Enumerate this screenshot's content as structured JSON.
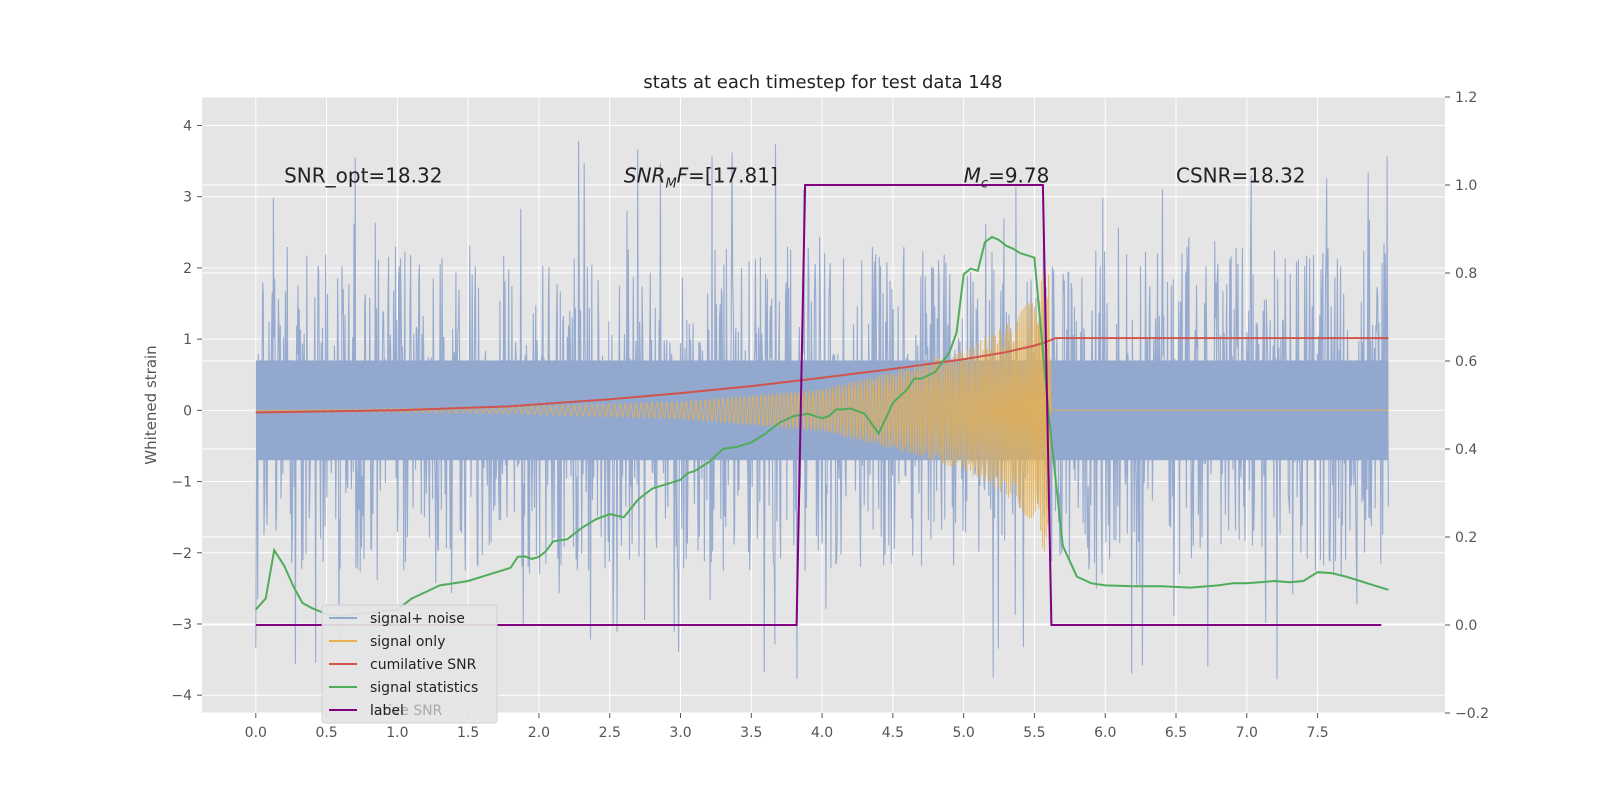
{
  "chart_data": {
    "type": "line",
    "title": "stats at each timestep for test data 148",
    "ylabel": "Whitened strain",
    "xlabel": "",
    "xlim": [
      -0.38,
      8.4
    ],
    "ylim": [
      -4.25,
      4.4
    ],
    "y2lim": [
      -0.2,
      1.2
    ],
    "x_ticks": [
      "0.0",
      "0.5",
      "1.0",
      "1.5",
      "2.0",
      "2.5",
      "3.0",
      "3.5",
      "4.0",
      "4.5",
      "5.0",
      "5.5",
      "6.0",
      "6.5",
      "7.0",
      "7.5"
    ],
    "x_tick_values": [
      0,
      0.5,
      1,
      1.5,
      2,
      2.5,
      3,
      3.5,
      4,
      4.5,
      5,
      5.5,
      6,
      6.5,
      7,
      7.5
    ],
    "y_ticks": [
      "−4",
      "−3",
      "−2",
      "−1",
      "0",
      "1",
      "2",
      "3",
      "4"
    ],
    "y_tick_values": [
      -4,
      -3,
      -2,
      -1,
      0,
      1,
      2,
      3,
      4
    ],
    "y2_ticks": [
      "−0.2",
      "0.0",
      "0.2",
      "0.4",
      "0.6",
      "0.8",
      "1.0",
      "1.2"
    ],
    "y2_tick_values": [
      -0.2,
      0,
      0.2,
      0.4,
      0.6,
      0.8,
      1.0,
      1.2
    ],
    "annotations": [
      {
        "text": "SNR_opt=18.32",
        "x": 0.2,
        "y": 3.3
      },
      {
        "text": "SNR_MF=[17.81]",
        "main": "SNR",
        "sub": "M",
        "rest": "F=[17.81]",
        "x": 2.6,
        "y": 3.3
      },
      {
        "text": "M_c=9.78",
        "main": "M",
        "sub": "c",
        "rest": "=9.78",
        "x": 5.0,
        "y": 3.3
      },
      {
        "text": "CSNR=18.32",
        "x": 6.5,
        "y": 3.3
      }
    ],
    "series": [
      {
        "name": "signal+ noise",
        "color": "#92a8cf",
        "axis": "left",
        "kind": "noise",
        "x_start": 0.0,
        "x_end": 8.0,
        "amplitude_envelope": 2.6,
        "band": 0.7
      },
      {
        "name": "signal only",
        "color": "#e8b04f",
        "axis": "left",
        "kind": "chirp",
        "x_start": 0.0,
        "x_end": 5.62,
        "envelope_points": [
          [
            0.0,
            0.0
          ],
          [
            1.8,
            0.05
          ],
          [
            3.0,
            0.12
          ],
          [
            4.0,
            0.3
          ],
          [
            4.5,
            0.55
          ],
          [
            5.0,
            0.85
          ],
          [
            5.3,
            1.2
          ],
          [
            5.5,
            1.6
          ],
          [
            5.6,
            2.2
          ],
          [
            5.62,
            0.0
          ],
          [
            8.0,
            0.0
          ]
        ]
      },
      {
        "name": "cumilative SNR",
        "color": "#d0544b",
        "axis": "right",
        "x": [
          0.0,
          1.0,
          1.8,
          2.5,
          3.0,
          3.5,
          4.0,
          4.5,
          5.0,
          5.3,
          5.5,
          5.58,
          5.65,
          8.0
        ],
        "values": [
          0.483,
          0.488,
          0.497,
          0.513,
          0.527,
          0.543,
          0.562,
          0.582,
          0.604,
          0.62,
          0.635,
          0.643,
          0.652,
          0.652
        ]
      },
      {
        "name": "signal statistics",
        "color": "#4fac5b",
        "axis": "right",
        "x": [
          0.0,
          0.07,
          0.13,
          0.2,
          0.27,
          0.33,
          0.4,
          0.5,
          0.6,
          0.7,
          0.8,
          0.9,
          1.0,
          1.1,
          1.2,
          1.3,
          1.4,
          1.5,
          1.6,
          1.7,
          1.8,
          1.85,
          1.9,
          1.95,
          2.0,
          2.05,
          2.1,
          2.2,
          2.3,
          2.4,
          2.5,
          2.6,
          2.7,
          2.8,
          2.9,
          3.0,
          3.05,
          3.1,
          3.2,
          3.3,
          3.4,
          3.5,
          3.6,
          3.7,
          3.8,
          3.9,
          4.0,
          4.05,
          4.1,
          4.15,
          4.2,
          4.3,
          4.4,
          4.5,
          4.6,
          4.65,
          4.7,
          4.8,
          4.9,
          4.95,
          5.0,
          5.05,
          5.1,
          5.15,
          5.2,
          5.25,
          5.3,
          5.35,
          5.4,
          5.5,
          5.6,
          5.7,
          5.8,
          5.9,
          6.0,
          6.2,
          6.4,
          6.6,
          6.8,
          6.9,
          7.0,
          7.2,
          7.3,
          7.4,
          7.5,
          7.6,
          7.7,
          7.8,
          7.9,
          8.0
        ],
        "values": [
          0.035,
          0.06,
          0.17,
          0.135,
          0.085,
          0.05,
          0.038,
          0.025,
          0.02,
          0.025,
          0.028,
          0.032,
          0.035,
          0.06,
          0.075,
          0.09,
          0.095,
          0.1,
          0.11,
          0.12,
          0.13,
          0.155,
          0.156,
          0.15,
          0.155,
          0.168,
          0.19,
          0.195,
          0.22,
          0.24,
          0.252,
          0.245,
          0.285,
          0.31,
          0.32,
          0.33,
          0.345,
          0.35,
          0.37,
          0.4,
          0.405,
          0.415,
          0.435,
          0.46,
          0.475,
          0.48,
          0.47,
          0.475,
          0.49,
          0.49,
          0.492,
          0.48,
          0.435,
          0.505,
          0.535,
          0.56,
          0.56,
          0.575,
          0.62,
          0.665,
          0.797,
          0.81,
          0.805,
          0.87,
          0.882,
          0.875,
          0.862,
          0.855,
          0.845,
          0.835,
          0.48,
          0.18,
          0.11,
          0.095,
          0.09,
          0.088,
          0.088,
          0.085,
          0.09,
          0.095,
          0.095,
          0.1,
          0.097,
          0.1,
          0.12,
          0.118,
          0.11,
          0.1,
          0.09,
          0.08
        ],
        "note": "sampled at the plotted curve"
      },
      {
        "name": "label",
        "color": "#800080",
        "axis": "right",
        "x": [
          0.0,
          3.82,
          3.88,
          5.56,
          5.62,
          7.95
        ],
        "values": [
          0.0,
          0.0,
          1.0,
          1.0,
          0.0,
          0.0
        ]
      }
    ],
    "legend": {
      "placement": "lower-left",
      "entries": [
        "signal+ noise",
        "signal only",
        "cumilative SNR",
        "signal statistics",
        "label"
      ],
      "ghost_text": "lative SNR"
    }
  },
  "colors": {
    "background": "#ffffff",
    "axes_face": "#e5e5e5",
    "grid": "#ffffff"
  }
}
